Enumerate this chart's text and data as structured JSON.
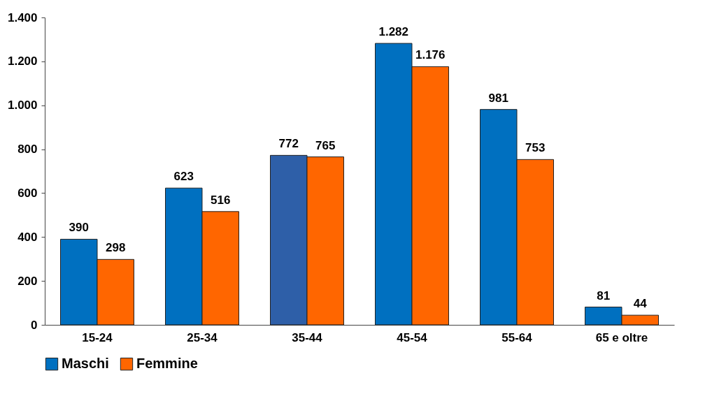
{
  "chart_data": {
    "type": "bar",
    "categories": [
      "15-24",
      "25-34",
      "35-44",
      "45-54",
      "55-64",
      "65 e oltre"
    ],
    "series": [
      {
        "name": "Maschi",
        "color": "#0070c0",
        "colors": [
          "#0070c0",
          "#0070c0",
          "#2e5fa8",
          "#0070c0",
          "#0070c0",
          "#0070c0"
        ],
        "values": [
          390,
          623,
          772,
          1282,
          981,
          81
        ],
        "value_labels": [
          "390",
          "623",
          "772",
          "1.282",
          "981",
          "81"
        ]
      },
      {
        "name": "Femmine",
        "color": "#ff6600",
        "values": [
          298,
          516,
          765,
          1176,
          753,
          44
        ],
        "value_labels": [
          "298",
          "516",
          "765",
          "1.176",
          "753",
          "44"
        ]
      }
    ],
    "ylim": [
      0,
      1400
    ],
    "yticks": [
      0,
      200,
      400,
      600,
      800,
      {
        "value": 1000,
        "label": "1.000"
      },
      {
        "value": 1200,
        "label": "1.200"
      },
      {
        "value": 1400,
        "label": "1.400"
      }
    ],
    "legend": "bottom"
  }
}
